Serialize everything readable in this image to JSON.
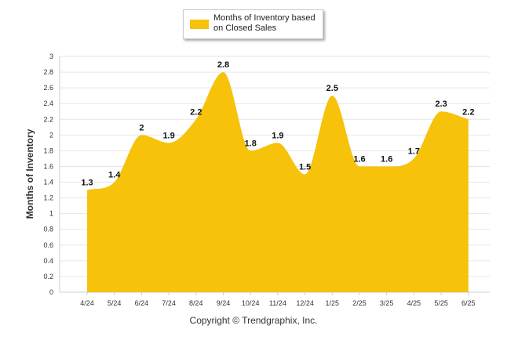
{
  "copyright": "Copyright © Trendgraphix, Inc.",
  "chart_data": {
    "type": "area",
    "title": "",
    "xlabel": "",
    "ylabel": "Months of Inventory",
    "legend": "Months of Inventory based on Closed Sales",
    "legend_placement": "top-center",
    "ylim": [
      0,
      3
    ],
    "yticks": [
      0,
      0.2,
      0.4,
      0.6,
      0.8,
      1,
      1.2,
      1.4,
      1.6,
      1.8,
      2,
      2.2,
      2.4,
      2.6,
      2.8,
      3
    ],
    "grid": true,
    "color": "#f6c20a",
    "categories": [
      "4/24",
      "5/24",
      "6/24",
      "7/24",
      "8/24",
      "9/24",
      "10/24",
      "11/24",
      "12/24",
      "1/25",
      "2/25",
      "3/25",
      "4/25",
      "5/25",
      "6/25"
    ],
    "series": [
      {
        "name": "Months of Inventory based on Closed Sales",
        "values": [
          1.3,
          1.4,
          2,
          1.9,
          2.2,
          2.8,
          1.8,
          1.9,
          1.5,
          2.5,
          1.6,
          1.6,
          1.7,
          2.3,
          2.2
        ],
        "labels": [
          "1.3",
          "1.4",
          "2",
          "1.9",
          "2.2",
          "2.8",
          "1.8",
          "1.9",
          "1.5",
          "2.5",
          "1.6",
          "1.6",
          "1.7",
          "2.3",
          "2.2"
        ]
      }
    ]
  }
}
